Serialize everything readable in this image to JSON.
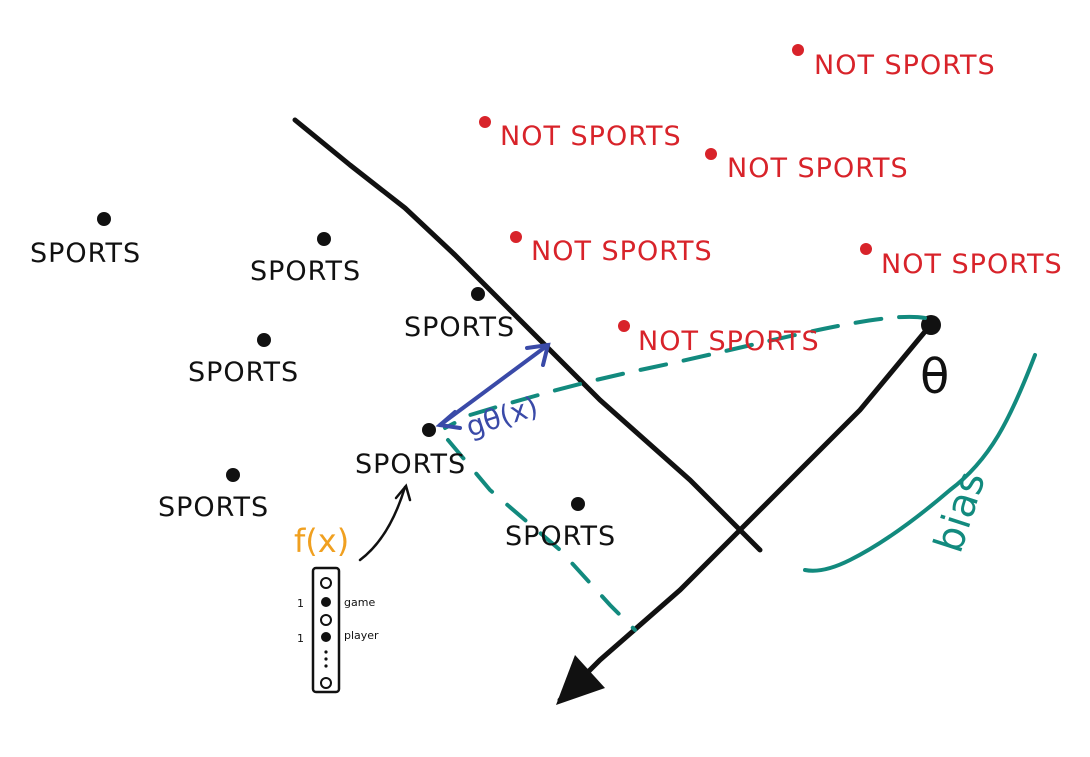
{
  "labels": {
    "sports": "SPORTS",
    "not_sports": "NOT SPORTS",
    "theta": "θ",
    "bias": "bias",
    "g_theta": "gθ(x)",
    "f_x": "f(x)",
    "feature_game": "game",
    "feature_player": "player",
    "feature_ones": [
      "1",
      "1"
    ]
  },
  "colors": {
    "sports": "#111111",
    "not_sports": "#d8232a",
    "boundary": "#111111",
    "distance": "#3a4aa8",
    "teal": "#128a7e",
    "fx": "#f0a020"
  },
  "icons": {
    "distance_arrow": "double-headed-arrow",
    "theta_vector": "arrow",
    "projection": "dashed-line"
  }
}
